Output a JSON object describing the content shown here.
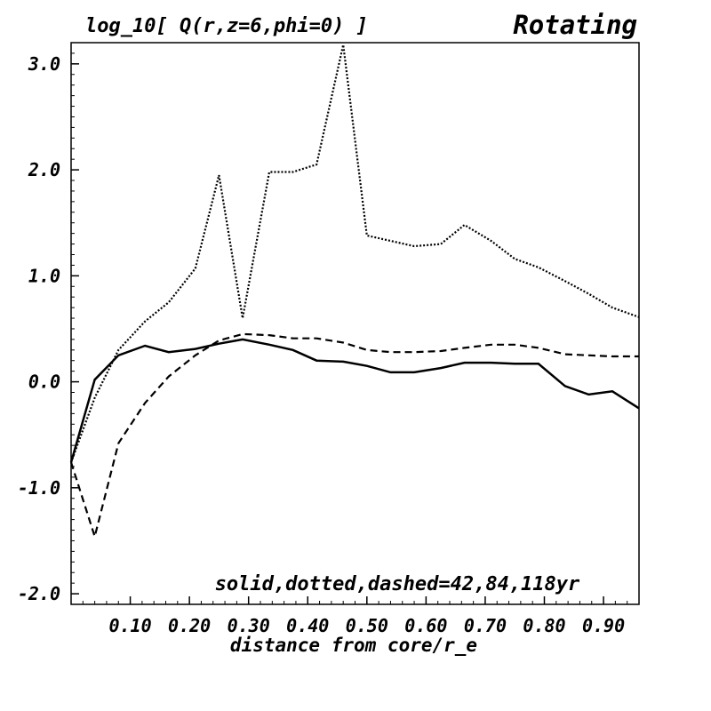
{
  "chart_data": {
    "type": "line",
    "title": "log_10[ Q(r,z=6,phi=0) ]",
    "subtitle": "Rotating",
    "xlabel": "distance from core/r_e",
    "ylabel": "",
    "annotation": "solid,dotted,dashed=42,84,118yr",
    "xlim": [
      0.0,
      0.96
    ],
    "ylim": [
      -2.1,
      3.2
    ],
    "xticks": [
      {
        "value": 0.1,
        "label": "0.10"
      },
      {
        "value": 0.2,
        "label": "0.20"
      },
      {
        "value": 0.3,
        "label": "0.30"
      },
      {
        "value": 0.4,
        "label": "0.40"
      },
      {
        "value": 0.5,
        "label": "0.50"
      },
      {
        "value": 0.6,
        "label": "0.60"
      },
      {
        "value": 0.7,
        "label": "0.70"
      },
      {
        "value": 0.8,
        "label": "0.80"
      },
      {
        "value": 0.9,
        "label": "0.90"
      }
    ],
    "yticks": [
      {
        "value": 3.0,
        "label": "3.0"
      },
      {
        "value": 2.0,
        "label": "2.0"
      },
      {
        "value": 1.0,
        "label": "1.0"
      },
      {
        "value": 0.0,
        "label": "0.0"
      },
      {
        "value": -1.0,
        "label": "-1.0"
      },
      {
        "value": -2.0,
        "label": "-2.0"
      }
    ],
    "grid": false,
    "series": [
      {
        "style": "solid",
        "color": "#000000",
        "x": [
          0.0,
          0.04,
          0.08,
          0.125,
          0.165,
          0.21,
          0.25,
          0.29,
          0.335,
          0.375,
          0.415,
          0.46,
          0.5,
          0.54,
          0.58,
          0.625,
          0.665,
          0.71,
          0.75,
          0.79,
          0.835,
          0.875,
          0.915,
          0.96
        ],
        "y": [
          -0.76,
          0.02,
          0.25,
          0.34,
          0.28,
          0.31,
          0.36,
          0.4,
          0.35,
          0.3,
          0.2,
          0.19,
          0.15,
          0.09,
          0.09,
          0.13,
          0.18,
          0.18,
          0.17,
          0.17,
          -0.04,
          -0.12,
          -0.09,
          -0.25
        ]
      },
      {
        "style": "dotted",
        "color": "#000000",
        "x": [
          0.0,
          0.04,
          0.08,
          0.125,
          0.165,
          0.21,
          0.25,
          0.29,
          0.335,
          0.375,
          0.415,
          0.46,
          0.5,
          0.54,
          0.58,
          0.625,
          0.665,
          0.71,
          0.75,
          0.79,
          0.835,
          0.875,
          0.915,
          0.96
        ],
        "y": [
          -0.76,
          -0.15,
          0.3,
          0.57,
          0.75,
          1.07,
          1.95,
          0.6,
          1.98,
          1.98,
          2.05,
          3.18,
          1.38,
          1.33,
          1.28,
          1.3,
          1.48,
          1.33,
          1.16,
          1.08,
          0.95,
          0.83,
          0.7,
          0.61
        ]
      },
      {
        "style": "dashed",
        "color": "#000000",
        "x": [
          0.0,
          0.04,
          0.08,
          0.125,
          0.165,
          0.21,
          0.25,
          0.29,
          0.335,
          0.375,
          0.415,
          0.46,
          0.5,
          0.54,
          0.58,
          0.625,
          0.665,
          0.71,
          0.75,
          0.79,
          0.835,
          0.875,
          0.915,
          0.96
        ],
        "y": [
          -0.76,
          -1.46,
          -0.58,
          -0.2,
          0.05,
          0.25,
          0.39,
          0.45,
          0.44,
          0.41,
          0.41,
          0.37,
          0.3,
          0.28,
          0.28,
          0.29,
          0.32,
          0.35,
          0.35,
          0.32,
          0.26,
          0.25,
          0.24,
          0.24
        ]
      }
    ]
  }
}
